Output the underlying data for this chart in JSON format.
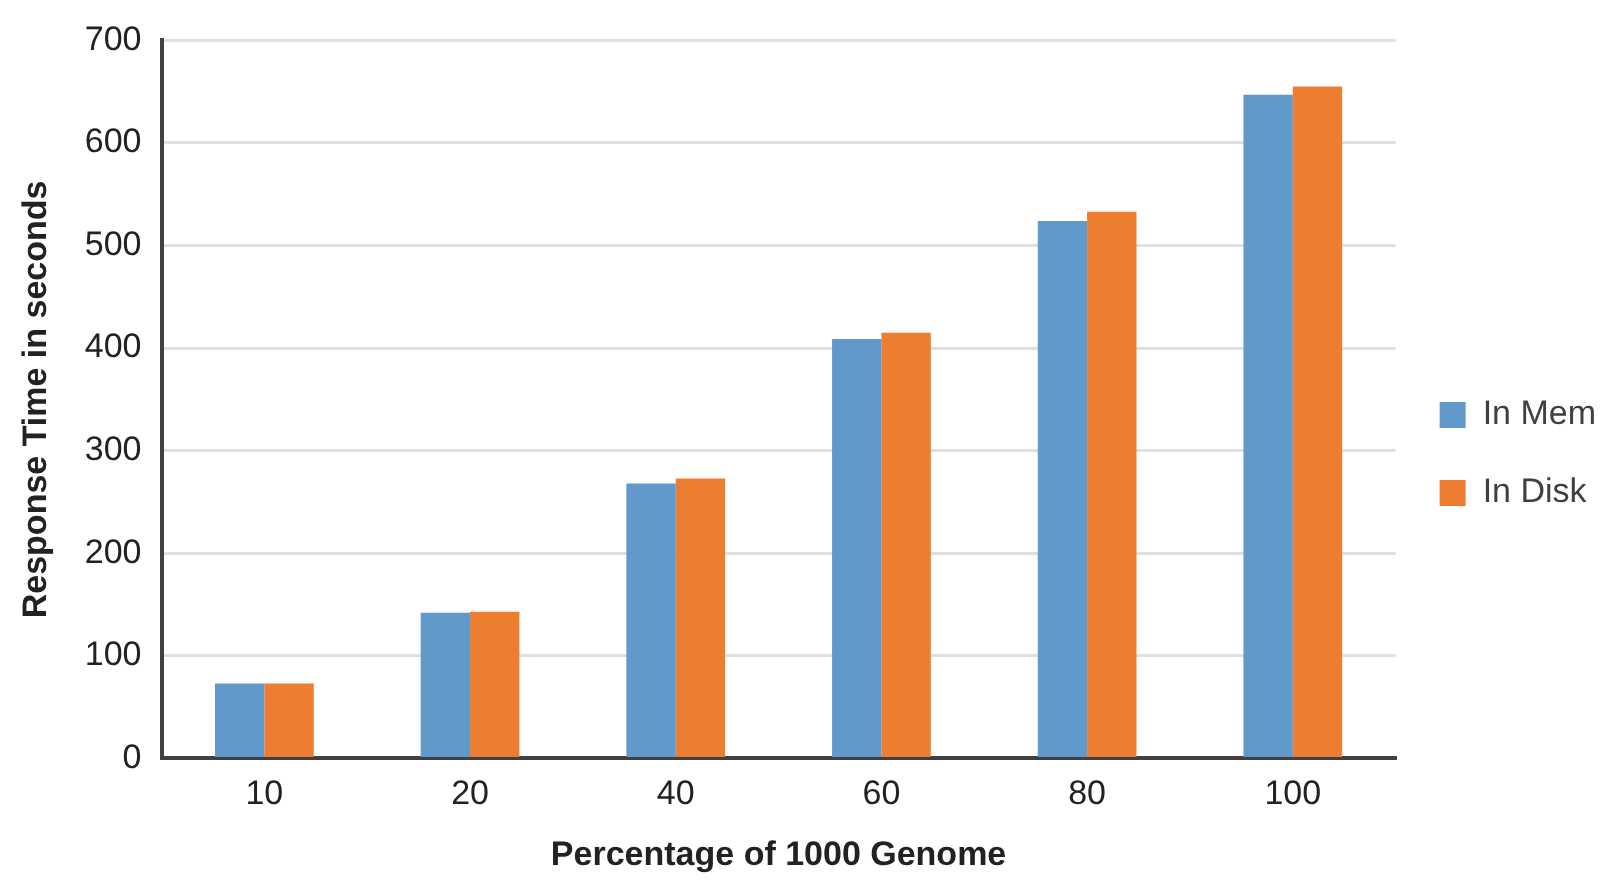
{
  "chart_data": {
    "type": "bar",
    "xlabel": "Percentage of 1000 Genome",
    "ylabel": "Response Time in seconds",
    "categories": [
      "10",
      "20",
      "40",
      "60",
      "80",
      "100"
    ],
    "series": [
      {
        "name": "In Mem",
        "color": "#6199cb",
        "values": [
          73,
          142,
          268,
          409,
          524,
          647
        ]
      },
      {
        "name": "In Disk",
        "color": "#ed7d31",
        "values": [
          73,
          143,
          273,
          415,
          533,
          655
        ]
      }
    ],
    "ylim": [
      0,
      700
    ],
    "yticks": [
      0,
      100,
      200,
      300,
      400,
      500,
      600,
      700
    ],
    "grid": "y",
    "legend": "right"
  }
}
